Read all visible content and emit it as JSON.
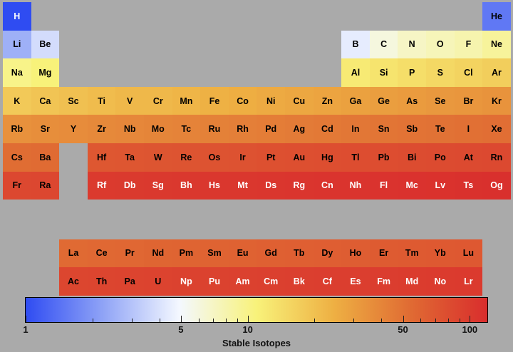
{
  "chart_data": {
    "type": "heatmap",
    "colorbar": {
      "label": "Stable Isotopes",
      "scale": "log",
      "range": [
        1,
        120
      ],
      "colormap": [
        "#2f4cf2",
        "#8fa3f6",
        "#f4f8ff",
        "#f8f27a",
        "#eeb043",
        "#e06b33",
        "#d92d2d"
      ],
      "major_ticks": [
        {
          "value": 1,
          "label": "1"
        },
        {
          "value": 5,
          "label": "5"
        },
        {
          "value": 10,
          "label": "10"
        },
        {
          "value": 50,
          "label": "50"
        },
        {
          "value": 100,
          "label": "100"
        }
      ],
      "minor_ticks": [
        2,
        3,
        4,
        6,
        7,
        8,
        9,
        20,
        30,
        40,
        60,
        70,
        80,
        90
      ]
    },
    "elements": [
      {
        "symbol": "H",
        "row": 1,
        "col": 1,
        "value": 1
      },
      {
        "symbol": "He",
        "row": 1,
        "col": 18,
        "value": 1.5
      },
      {
        "symbol": "Li",
        "row": 2,
        "col": 1,
        "value": 2.5
      },
      {
        "symbol": "Be",
        "row": 2,
        "col": 2,
        "value": 3.8
      },
      {
        "symbol": "B",
        "row": 2,
        "col": 13,
        "value": 4.4
      },
      {
        "symbol": "C",
        "row": 2,
        "col": 14,
        "value": 6
      },
      {
        "symbol": "N",
        "row": 2,
        "col": 15,
        "value": 7
      },
      {
        "symbol": "O",
        "row": 2,
        "col": 16,
        "value": 7.5
      },
      {
        "symbol": "F",
        "row": 2,
        "col": 17,
        "value": 8
      },
      {
        "symbol": "Ne",
        "row": 2,
        "col": 18,
        "value": 9
      },
      {
        "symbol": "Na",
        "row": 3,
        "col": 1,
        "value": 10
      },
      {
        "symbol": "Mg",
        "row": 3,
        "col": 2,
        "value": 11
      },
      {
        "symbol": "Al",
        "row": 3,
        "col": 13,
        "value": 12
      },
      {
        "symbol": "Si",
        "row": 3,
        "col": 14,
        "value": 13
      },
      {
        "symbol": "P",
        "row": 3,
        "col": 15,
        "value": 14
      },
      {
        "symbol": "S",
        "row": 3,
        "col": 16,
        "value": 15
      },
      {
        "symbol": "Cl",
        "row": 3,
        "col": 17,
        "value": 16
      },
      {
        "symbol": "Ar",
        "row": 3,
        "col": 18,
        "value": 17
      },
      {
        "symbol": "K",
        "row": 4,
        "col": 1,
        "value": 18
      },
      {
        "symbol": "Ca",
        "row": 4,
        "col": 2,
        "value": 19
      },
      {
        "symbol": "Sc",
        "row": 4,
        "col": 3,
        "value": 20
      },
      {
        "symbol": "Ti",
        "row": 4,
        "col": 4,
        "value": 21
      },
      {
        "symbol": "V",
        "row": 4,
        "col": 5,
        "value": 22
      },
      {
        "symbol": "Cr",
        "row": 4,
        "col": 6,
        "value": 22
      },
      {
        "symbol": "Mn",
        "row": 4,
        "col": 7,
        "value": 23
      },
      {
        "symbol": "Fe",
        "row": 4,
        "col": 8,
        "value": 24
      },
      {
        "symbol": "Co",
        "row": 4,
        "col": 9,
        "value": 25
      },
      {
        "symbol": "Ni",
        "row": 4,
        "col": 10,
        "value": 26
      },
      {
        "symbol": "Cu",
        "row": 4,
        "col": 11,
        "value": 27
      },
      {
        "symbol": "Zn",
        "row": 4,
        "col": 12,
        "value": 28
      },
      {
        "symbol": "Ga",
        "row": 4,
        "col": 13,
        "value": 29
      },
      {
        "symbol": "Ge",
        "row": 4,
        "col": 14,
        "value": 30
      },
      {
        "symbol": "As",
        "row": 4,
        "col": 15,
        "value": 31
      },
      {
        "symbol": "Se",
        "row": 4,
        "col": 16,
        "value": 32
      },
      {
        "symbol": "Br",
        "row": 4,
        "col": 17,
        "value": 33
      },
      {
        "symbol": "Kr",
        "row": 4,
        "col": 18,
        "value": 34
      },
      {
        "symbol": "Rb",
        "row": 5,
        "col": 1,
        "value": 35
      },
      {
        "symbol": "Sr",
        "row": 5,
        "col": 2,
        "value": 36
      },
      {
        "symbol": "Y",
        "row": 5,
        "col": 3,
        "value": 37
      },
      {
        "symbol": "Zr",
        "row": 5,
        "col": 4,
        "value": 38
      },
      {
        "symbol": "Nb",
        "row": 5,
        "col": 5,
        "value": 39
      },
      {
        "symbol": "Mo",
        "row": 5,
        "col": 6,
        "value": 40
      },
      {
        "symbol": "Tc",
        "row": 5,
        "col": 7,
        "value": 41
      },
      {
        "symbol": "Ru",
        "row": 5,
        "col": 8,
        "value": 42
      },
      {
        "symbol": "Rh",
        "row": 5,
        "col": 9,
        "value": 43
      },
      {
        "symbol": "Pd",
        "row": 5,
        "col": 10,
        "value": 44
      },
      {
        "symbol": "Ag",
        "row": 5,
        "col": 11,
        "value": 45
      },
      {
        "symbol": "Cd",
        "row": 5,
        "col": 12,
        "value": 46
      },
      {
        "symbol": "In",
        "row": 5,
        "col": 13,
        "value": 47
      },
      {
        "symbol": "Sn",
        "row": 5,
        "col": 14,
        "value": 48
      },
      {
        "symbol": "Sb",
        "row": 5,
        "col": 15,
        "value": 49
      },
      {
        "symbol": "Te",
        "row": 5,
        "col": 16,
        "value": 50
      },
      {
        "symbol": "I",
        "row": 5,
        "col": 17,
        "value": 51
      },
      {
        "symbol": "Xe",
        "row": 5,
        "col": 18,
        "value": 52
      },
      {
        "symbol": "Cs",
        "row": 6,
        "col": 1,
        "value": 53
      },
      {
        "symbol": "Ba",
        "row": 6,
        "col": 2,
        "value": 54
      },
      {
        "symbol": "Hf",
        "row": 6,
        "col": 4,
        "value": 70
      },
      {
        "symbol": "Ta",
        "row": 6,
        "col": 5,
        "value": 71
      },
      {
        "symbol": "W",
        "row": 6,
        "col": 6,
        "value": 72
      },
      {
        "symbol": "Re",
        "row": 6,
        "col": 7,
        "value": 73
      },
      {
        "symbol": "Os",
        "row": 6,
        "col": 8,
        "value": 74
      },
      {
        "symbol": "Ir",
        "row": 6,
        "col": 9,
        "value": 75
      },
      {
        "symbol": "Pt",
        "row": 6,
        "col": 10,
        "value": 76
      },
      {
        "symbol": "Au",
        "row": 6,
        "col": 11,
        "value": 77
      },
      {
        "symbol": "Hg",
        "row": 6,
        "col": 12,
        "value": 78
      },
      {
        "symbol": "Tl",
        "row": 6,
        "col": 13,
        "value": 79
      },
      {
        "symbol": "Pb",
        "row": 6,
        "col": 14,
        "value": 80
      },
      {
        "symbol": "Bi",
        "row": 6,
        "col": 15,
        "value": 81
      },
      {
        "symbol": "Po",
        "row": 6,
        "col": 16,
        "value": 82
      },
      {
        "symbol": "At",
        "row": 6,
        "col": 17,
        "value": 83
      },
      {
        "symbol": "Rn",
        "row": 6,
        "col": 18,
        "value": 84
      },
      {
        "symbol": "Fr",
        "row": 7,
        "col": 1,
        "value": 85
      },
      {
        "symbol": "Ra",
        "row": 7,
        "col": 2,
        "value": 86
      },
      {
        "symbol": "Rf",
        "row": 7,
        "col": 4,
        "value": 101
      },
      {
        "symbol": "Db",
        "row": 7,
        "col": 5,
        "value": 102
      },
      {
        "symbol": "Sg",
        "row": 7,
        "col": 6,
        "value": 103
      },
      {
        "symbol": "Bh",
        "row": 7,
        "col": 7,
        "value": 104
      },
      {
        "symbol": "Hs",
        "row": 7,
        "col": 8,
        "value": 105
      },
      {
        "symbol": "Mt",
        "row": 7,
        "col": 9,
        "value": 106
      },
      {
        "symbol": "Ds",
        "row": 7,
        "col": 10,
        "value": 107
      },
      {
        "symbol": "Rg",
        "row": 7,
        "col": 11,
        "value": 108
      },
      {
        "symbol": "Cn",
        "row": 7,
        "col": 12,
        "value": 109
      },
      {
        "symbol": "Nh",
        "row": 7,
        "col": 13,
        "value": 110
      },
      {
        "symbol": "Fl",
        "row": 7,
        "col": 14,
        "value": 111
      },
      {
        "symbol": "Mc",
        "row": 7,
        "col": 15,
        "value": 112
      },
      {
        "symbol": "Lv",
        "row": 7,
        "col": 16,
        "value": 113
      },
      {
        "symbol": "Ts",
        "row": 7,
        "col": 17,
        "value": 114
      },
      {
        "symbol": "Og",
        "row": 7,
        "col": 18,
        "value": 115
      },
      {
        "symbol": "La",
        "row": 9,
        "col": 3,
        "value": 55
      },
      {
        "symbol": "Ce",
        "row": 9,
        "col": 4,
        "value": 56
      },
      {
        "symbol": "Pr",
        "row": 9,
        "col": 5,
        "value": 57
      },
      {
        "symbol": "Nd",
        "row": 9,
        "col": 6,
        "value": 58
      },
      {
        "symbol": "Pm",
        "row": 9,
        "col": 7,
        "value": 59
      },
      {
        "symbol": "Sm",
        "row": 9,
        "col": 8,
        "value": 60
      },
      {
        "symbol": "Eu",
        "row": 9,
        "col": 9,
        "value": 61
      },
      {
        "symbol": "Gd",
        "row": 9,
        "col": 10,
        "value": 62
      },
      {
        "symbol": "Tb",
        "row": 9,
        "col": 11,
        "value": 63
      },
      {
        "symbol": "Dy",
        "row": 9,
        "col": 12,
        "value": 64
      },
      {
        "symbol": "Ho",
        "row": 9,
        "col": 13,
        "value": 65
      },
      {
        "symbol": "Er",
        "row": 9,
        "col": 14,
        "value": 66
      },
      {
        "symbol": "Tm",
        "row": 9,
        "col": 15,
        "value": 67
      },
      {
        "symbol": "Yb",
        "row": 9,
        "col": 16,
        "value": 68
      },
      {
        "symbol": "Lu",
        "row": 9,
        "col": 17,
        "value": 69
      },
      {
        "symbol": "Ac",
        "row": 10,
        "col": 3,
        "value": 87
      },
      {
        "symbol": "Th",
        "row": 10,
        "col": 4,
        "value": 88
      },
      {
        "symbol": "Pa",
        "row": 10,
        "col": 5,
        "value": 89
      },
      {
        "symbol": "U",
        "row": 10,
        "col": 6,
        "value": 90
      },
      {
        "symbol": "Np",
        "row": 10,
        "col": 7,
        "value": 91
      },
      {
        "symbol": "Pu",
        "row": 10,
        "col": 8,
        "value": 92
      },
      {
        "symbol": "Am",
        "row": 10,
        "col": 9,
        "value": 93
      },
      {
        "symbol": "Cm",
        "row": 10,
        "col": 10,
        "value": 94
      },
      {
        "symbol": "Bk",
        "row": 10,
        "col": 11,
        "value": 95
      },
      {
        "symbol": "Cf",
        "row": 10,
        "col": 12,
        "value": 96
      },
      {
        "symbol": "Es",
        "row": 10,
        "col": 13,
        "value": 97
      },
      {
        "symbol": "Fm",
        "row": 10,
        "col": 14,
        "value": 98
      },
      {
        "symbol": "Md",
        "row": 10,
        "col": 15,
        "value": 99
      },
      {
        "symbol": "No",
        "row": 10,
        "col": 16,
        "value": 100
      },
      {
        "symbol": "Lr",
        "row": 10,
        "col": 17,
        "value": 101
      }
    ]
  }
}
